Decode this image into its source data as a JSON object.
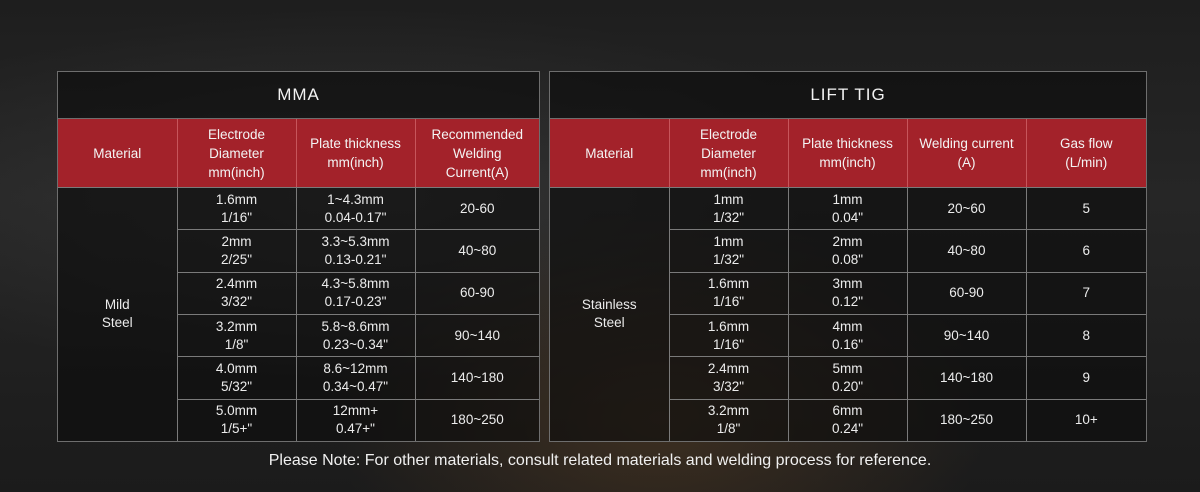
{
  "mma": {
    "title": "MMA",
    "headers": {
      "material": "Material",
      "electrode": [
        "Electrode",
        "Diameter",
        "mm(inch)"
      ],
      "plate": [
        "Plate thickness",
        "mm(inch)"
      ],
      "current": [
        "Recommended",
        "Welding",
        "Current(A)"
      ]
    },
    "material": [
      "Mild",
      "Steel"
    ],
    "rows": [
      {
        "electrode": [
          "1.6mm",
          "1/16\""
        ],
        "plate": [
          "1~4.3mm",
          "0.04-0.17\""
        ],
        "current": "20-60"
      },
      {
        "electrode": [
          "2mm",
          "2/25\""
        ],
        "plate": [
          "3.3~5.3mm",
          "0.13-0.21\""
        ],
        "current": "40~80"
      },
      {
        "electrode": [
          "2.4mm",
          "3/32\""
        ],
        "plate": [
          "4.3~5.8mm",
          "0.17-0.23\""
        ],
        "current": "60-90"
      },
      {
        "electrode": [
          "3.2mm",
          "1/8\""
        ],
        "plate": [
          "5.8~8.6mm",
          "0.23~0.34\""
        ],
        "current": "90~140"
      },
      {
        "electrode": [
          "4.0mm",
          "5/32\""
        ],
        "plate": [
          "8.6~12mm",
          "0.34~0.47\""
        ],
        "current": "140~180"
      },
      {
        "electrode": [
          "5.0mm",
          "1/5+\""
        ],
        "plate": [
          "12mm+",
          "0.47+\""
        ],
        "current": "180~250"
      }
    ]
  },
  "tig": {
    "title": "LIFT TIG",
    "headers": {
      "material": "Material",
      "electrode": [
        "Electrode",
        "Diameter",
        "mm(inch)"
      ],
      "plate": [
        "Plate thickness",
        "mm(inch)"
      ],
      "current": [
        "Welding current",
        "(A)"
      ],
      "gas": [
        "Gas flow",
        "(L/min)"
      ]
    },
    "material": [
      "Stainless",
      "Steel"
    ],
    "rows": [
      {
        "electrode": [
          "1mm",
          "1/32\""
        ],
        "plate": [
          "1mm",
          "0.04\""
        ],
        "current": "20~60",
        "gas": "5"
      },
      {
        "electrode": [
          "1mm",
          "1/32\""
        ],
        "plate": [
          "2mm",
          "0.08\""
        ],
        "current": "40~80",
        "gas": "6"
      },
      {
        "electrode": [
          "1.6mm",
          "1/16\""
        ],
        "plate": [
          "3mm",
          "0.12\""
        ],
        "current": "60-90",
        "gas": "7"
      },
      {
        "electrode": [
          "1.6mm",
          "1/16\""
        ],
        "plate": [
          "4mm",
          "0.16\""
        ],
        "current": "90~140",
        "gas": "8"
      },
      {
        "electrode": [
          "2.4mm",
          "3/32\""
        ],
        "plate": [
          "5mm",
          "0.20\""
        ],
        "current": "140~180",
        "gas": "9"
      },
      {
        "electrode": [
          "3.2mm",
          "1/8\""
        ],
        "plate": [
          "6mm",
          "0.24\""
        ],
        "current": "180~250",
        "gas": "10+"
      }
    ]
  },
  "note": "Please Note: For other materials, consult related materials and welding process for reference."
}
